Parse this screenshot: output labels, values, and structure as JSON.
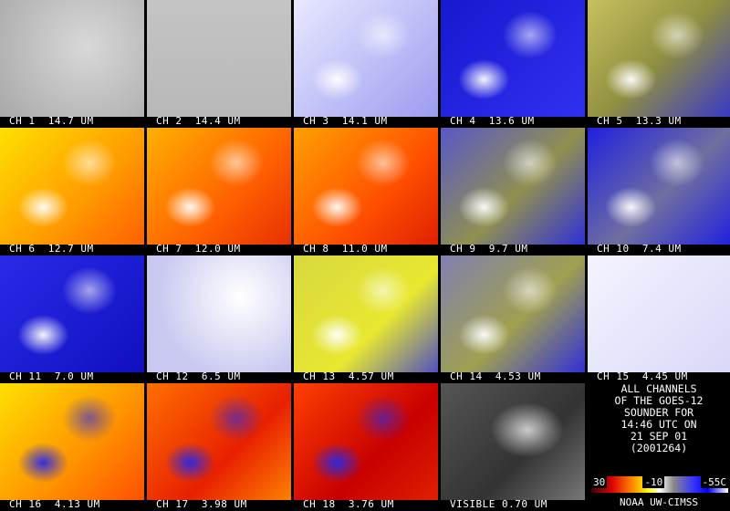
{
  "panels": [
    "CH 1  14.7 UM",
    "CH 2  14.4 UM",
    "CH 3  14.1 UM",
    "CH 4  13.6 UM",
    "CH 5  13.3 UM",
    "CH 6  12.7 UM",
    "CH 7  12.0 UM",
    "CH 8  11.0 UM",
    "CH 9  9.7 UM",
    "CH 10  7.4 UM",
    "CH 11  7.0 UM",
    "CH 12  6.5 UM",
    "CH 13  4.57 UM",
    "CH 14  4.53 UM",
    "CH 15  4.45 UM",
    "CH 16  4.13 UM",
    "CH 17  3.98 UM",
    "CH 18  3.76 UM",
    "VISIBLE 0.70 UM"
  ],
  "info": {
    "lines": [
      "ALL CHANNELS",
      "OF THE GOES-12",
      "SOUNDER FOR",
      "14:46 UTC ON",
      "21 SEP 01",
      "(2001264)"
    ],
    "scale_labels": [
      "30",
      "-10",
      "-55C"
    ],
    "credit": "NOAA UW-CIMSS"
  }
}
